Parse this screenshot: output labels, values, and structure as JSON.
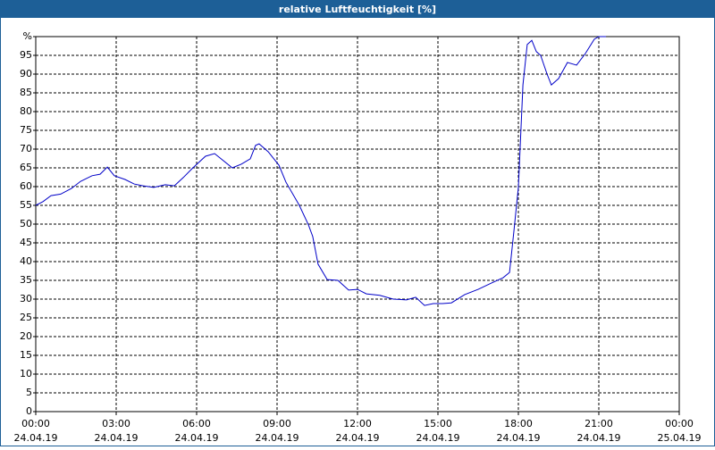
{
  "chart_data": {
    "type": "line",
    "title": "relative Luftfeuchtigkeit [%]",
    "xlim": [
      0,
      24
    ],
    "xticks": [
      {
        "value": 0,
        "label": "00:00"
      },
      {
        "value": 3,
        "label": "03:00"
      },
      {
        "value": 6,
        "label": "06:00"
      },
      {
        "value": 9,
        "label": "09:00"
      },
      {
        "value": 12,
        "label": "12:00"
      },
      {
        "value": 15,
        "label": "15:00"
      },
      {
        "value": 18,
        "label": "18:00"
      },
      {
        "value": 21,
        "label": "21:00"
      },
      {
        "value": 24,
        "label": "00:00"
      }
    ],
    "xtick_dates": [
      "24.04.19",
      "24.04.19",
      "24.04.19",
      "24.04.19",
      "24.04.19",
      "24.04.19",
      "24.04.19",
      "24.04.19",
      "25.04.19"
    ],
    "ylim": [
      0,
      100
    ],
    "yticks": [
      0,
      5,
      10,
      15,
      20,
      25,
      30,
      35,
      40,
      45,
      50,
      55,
      60,
      65,
      70,
      75,
      80,
      85,
      90,
      95,
      {
        "value": 100,
        "label": "%"
      }
    ],
    "grid": true,
    "series": [
      {
        "color": "#0000c8",
        "x": [
          0,
          0.27,
          0.57,
          0.93,
          1.33,
          1.67,
          2.1,
          2.4,
          2.67,
          2.93,
          3.33,
          3.67,
          4.0,
          4.4,
          4.83,
          5.17,
          5.5,
          5.83,
          6.33,
          6.67,
          7.0,
          7.33,
          7.67,
          8.0,
          8.2,
          8.33,
          8.67,
          9.07,
          9.33,
          9.83,
          10.17,
          10.33,
          10.53,
          10.87,
          11.27,
          11.67,
          12.0,
          12.33,
          12.83,
          13.33,
          13.83,
          14.17,
          14.5,
          14.83,
          15.17,
          15.5,
          16.0,
          16.5,
          17.0,
          17.43,
          17.67,
          17.83,
          18.0,
          18.17,
          18.33,
          18.5,
          18.67,
          18.83,
          19.07,
          19.23,
          19.5,
          19.83,
          20.17,
          20.5,
          20.83,
          21.0,
          21.27
        ],
        "values": [
          55,
          56,
          57.6,
          58,
          59.5,
          61.4,
          62.9,
          63.3,
          65.2,
          62.9,
          61.9,
          60.7,
          60.2,
          59.8,
          60.5,
          60.2,
          62.4,
          64.8,
          68.1,
          68.8,
          66.9,
          65,
          66,
          67.4,
          71,
          71.4,
          69.3,
          65.7,
          61.2,
          55,
          49.8,
          46.7,
          39.3,
          35.2,
          35,
          32.4,
          32.6,
          31.4,
          31,
          30,
          29.8,
          30.5,
          28.3,
          28.8,
          28.8,
          29,
          31.2,
          32.6,
          34.3,
          35.7,
          37.1,
          47.9,
          59.8,
          87.1,
          97.9,
          99,
          96,
          95,
          90,
          87.1,
          88.8,
          93.1,
          92.4,
          95.5,
          99.3,
          100,
          100
        ]
      }
    ]
  }
}
